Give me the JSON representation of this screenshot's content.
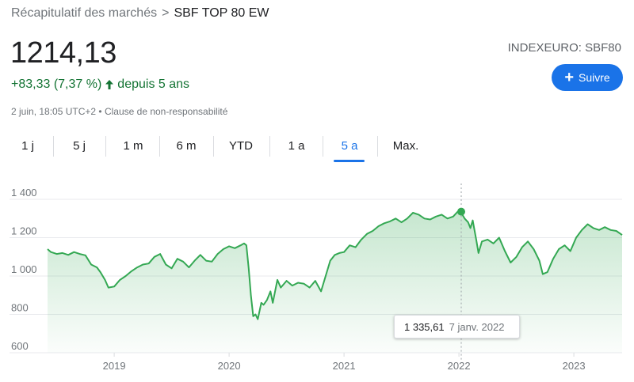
{
  "breadcrumb": {
    "parent": "Récapitulatif des marchés",
    "separator": ">",
    "current": "SBF TOP 80 EW"
  },
  "quote": {
    "price": "1214,13",
    "change": "+83,33 (7,37 %)",
    "period": "depuis 5 ans",
    "timestamp": "2 juin, 18:05 UTC+2",
    "bullet": "•",
    "disclaimer": "Clause de non-responsabilité",
    "ticker": "INDEXEURO: SBF80"
  },
  "follow": {
    "label": "Suivre",
    "icon": "plus-icon"
  },
  "tabs": [
    {
      "label": "1 j"
    },
    {
      "label": "5 j"
    },
    {
      "label": "1 m"
    },
    {
      "label": "6 m"
    },
    {
      "label": "YTD"
    },
    {
      "label": "1 a"
    },
    {
      "label": "5 a"
    },
    {
      "label": "Max."
    }
  ],
  "active_tab": "5 a",
  "colors": {
    "accent": "#1a73e8",
    "positive": "#137333",
    "line": "#34a853"
  },
  "tooltip": {
    "value": "1 335,61",
    "date": "7 janv. 2022"
  },
  "chart_data": {
    "type": "area",
    "x_ticks": [
      "2019",
      "2020",
      "2021",
      "2022",
      "2023"
    ],
    "y_ticks": [
      "1 400",
      "1 200",
      "1 000",
      "800",
      "600"
    ],
    "ylim": [
      600,
      1400
    ],
    "x_range": [
      2018.42,
      2023.42
    ],
    "grid": true,
    "series": [
      {
        "points": [
          [
            2018.42,
            1140
          ],
          [
            2018.45,
            1125
          ],
          [
            2018.5,
            1115
          ],
          [
            2018.55,
            1120
          ],
          [
            2018.6,
            1110
          ],
          [
            2018.65,
            1125
          ],
          [
            2018.7,
            1115
          ],
          [
            2018.75,
            1108
          ],
          [
            2018.8,
            1060
          ],
          [
            2018.85,
            1045
          ],
          [
            2018.88,
            1020
          ],
          [
            2018.92,
            980
          ],
          [
            2018.95,
            940
          ],
          [
            2019.0,
            945
          ],
          [
            2019.05,
            980
          ],
          [
            2019.1,
            1000
          ],
          [
            2019.15,
            1025
          ],
          [
            2019.2,
            1045
          ],
          [
            2019.25,
            1060
          ],
          [
            2019.3,
            1065
          ],
          [
            2019.35,
            1100
          ],
          [
            2019.4,
            1115
          ],
          [
            2019.45,
            1060
          ],
          [
            2019.5,
            1040
          ],
          [
            2019.55,
            1090
          ],
          [
            2019.6,
            1075
          ],
          [
            2019.65,
            1045
          ],
          [
            2019.7,
            1080
          ],
          [
            2019.75,
            1110
          ],
          [
            2019.8,
            1080
          ],
          [
            2019.85,
            1075
          ],
          [
            2019.9,
            1115
          ],
          [
            2019.95,
            1140
          ],
          [
            2020.0,
            1155
          ],
          [
            2020.05,
            1145
          ],
          [
            2020.1,
            1160
          ],
          [
            2020.13,
            1170
          ],
          [
            2020.15,
            1160
          ],
          [
            2020.17,
            1040
          ],
          [
            2020.19,
            900
          ],
          [
            2020.21,
            790
          ],
          [
            2020.23,
            800
          ],
          [
            2020.25,
            775
          ],
          [
            2020.28,
            860
          ],
          [
            2020.3,
            850
          ],
          [
            2020.33,
            875
          ],
          [
            2020.36,
            920
          ],
          [
            2020.38,
            860
          ],
          [
            2020.42,
            980
          ],
          [
            2020.45,
            940
          ],
          [
            2020.5,
            975
          ],
          [
            2020.55,
            950
          ],
          [
            2020.6,
            965
          ],
          [
            2020.65,
            960
          ],
          [
            2020.7,
            940
          ],
          [
            2020.75,
            975
          ],
          [
            2020.8,
            920
          ],
          [
            2020.84,
            1000
          ],
          [
            2020.88,
            1080
          ],
          [
            2020.92,
            1110
          ],
          [
            2020.96,
            1120
          ],
          [
            2021.0,
            1125
          ],
          [
            2021.05,
            1160
          ],
          [
            2021.1,
            1150
          ],
          [
            2021.15,
            1190
          ],
          [
            2021.2,
            1220
          ],
          [
            2021.25,
            1235
          ],
          [
            2021.3,
            1260
          ],
          [
            2021.35,
            1275
          ],
          [
            2021.4,
            1285
          ],
          [
            2021.45,
            1300
          ],
          [
            2021.5,
            1280
          ],
          [
            2021.55,
            1300
          ],
          [
            2021.6,
            1330
          ],
          [
            2021.65,
            1320
          ],
          [
            2021.7,
            1300
          ],
          [
            2021.75,
            1295
          ],
          [
            2021.8,
            1310
          ],
          [
            2021.85,
            1320
          ],
          [
            2021.9,
            1300
          ],
          [
            2021.95,
            1310
          ],
          [
            2021.99,
            1336
          ],
          [
            2022.02,
            1330
          ],
          [
            2022.05,
            1300
          ],
          [
            2022.08,
            1280
          ],
          [
            2022.1,
            1250
          ],
          [
            2022.12,
            1290
          ],
          [
            2022.15,
            1190
          ],
          [
            2022.17,
            1120
          ],
          [
            2022.2,
            1180
          ],
          [
            2022.25,
            1190
          ],
          [
            2022.3,
            1170
          ],
          [
            2022.35,
            1200
          ],
          [
            2022.4,
            1130
          ],
          [
            2022.45,
            1070
          ],
          [
            2022.5,
            1100
          ],
          [
            2022.55,
            1150
          ],
          [
            2022.6,
            1180
          ],
          [
            2022.65,
            1140
          ],
          [
            2022.7,
            1080
          ],
          [
            2022.73,
            1010
          ],
          [
            2022.77,
            1020
          ],
          [
            2022.82,
            1090
          ],
          [
            2022.87,
            1140
          ],
          [
            2022.92,
            1160
          ],
          [
            2022.97,
            1130
          ],
          [
            2023.02,
            1200
          ],
          [
            2023.07,
            1240
          ],
          [
            2023.12,
            1270
          ],
          [
            2023.17,
            1250
          ],
          [
            2023.22,
            1240
          ],
          [
            2023.27,
            1255
          ],
          [
            2023.32,
            1240
          ],
          [
            2023.37,
            1235
          ],
          [
            2023.42,
            1214
          ]
        ]
      }
    ],
    "highlight": {
      "x": 2022.02,
      "y": 1335.61
    }
  }
}
